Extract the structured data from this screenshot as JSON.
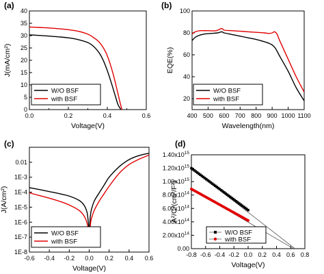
{
  "chart_data": [
    {
      "panel_label": "(a)",
      "type": "line",
      "xlabel": "Voltage(V)",
      "ylabel": "J(mA/cm²)",
      "xlim": [
        0,
        0.6
      ],
      "ylim": [
        0,
        40
      ],
      "xticks": [
        "0.0",
        "0.2",
        "0.4",
        "0.6"
      ],
      "yticks": [
        "0",
        "5",
        "10",
        "15",
        "20",
        "25",
        "30",
        "35",
        "40"
      ],
      "legend_position": "bottom-left",
      "series": [
        {
          "name": "W/O BSF",
          "color": "#000000",
          "x": [
            0,
            0.05,
            0.1,
            0.15,
            0.2,
            0.25,
            0.3,
            0.33,
            0.36,
            0.38,
            0.4,
            0.42,
            0.44,
            0.455,
            0.47
          ],
          "y": [
            30.3,
            30.1,
            29.8,
            29.5,
            29.1,
            28.4,
            27.2,
            25.6,
            22.8,
            19.8,
            15.8,
            11.0,
            5.8,
            2.0,
            0
          ]
        },
        {
          "name": "with BSF",
          "color": "#e00000",
          "x": [
            0,
            0.05,
            0.1,
            0.15,
            0.2,
            0.25,
            0.3,
            0.33,
            0.36,
            0.39,
            0.41,
            0.43,
            0.45,
            0.465,
            0.475
          ],
          "y": [
            33.5,
            33.3,
            33.1,
            32.8,
            32.4,
            31.8,
            30.6,
            29.2,
            27.2,
            23.6,
            19.6,
            14.4,
            8.0,
            3.0,
            0
          ]
        }
      ]
    },
    {
      "panel_label": "(b)",
      "type": "line",
      "xlabel": "Wavelength(nm)",
      "ylabel": "EQE(%)",
      "xlim": [
        400,
        1100
      ],
      "ylim": [
        10,
        100
      ],
      "xticks": [
        "400",
        "500",
        "600",
        "700",
        "800",
        "900",
        "1000",
        "1100"
      ],
      "yticks": [
        "20",
        "40",
        "60",
        "80",
        "100"
      ],
      "legend_position": "bottom-left",
      "series": [
        {
          "name": "W/O BSF",
          "color": "#000000",
          "x": [
            400,
            420,
            450,
            480,
            520,
            560,
            585,
            600,
            650,
            700,
            750,
            800,
            850,
            880,
            900,
            920,
            950,
            1000,
            1050,
            1100
          ],
          "y": [
            73,
            76,
            78,
            79,
            79.5,
            80,
            81,
            80,
            78.5,
            77,
            75.5,
            74,
            72,
            70.5,
            69,
            66,
            58,
            45,
            30,
            18
          ]
        },
        {
          "name": "with BSF",
          "color": "#e00000",
          "x": [
            400,
            420,
            450,
            500,
            550,
            585,
            600,
            650,
            700,
            750,
            800,
            850,
            880,
            900,
            915,
            930,
            950,
            1000,
            1050,
            1100
          ],
          "y": [
            79,
            81,
            82,
            82,
            82,
            84,
            82.5,
            82,
            81.5,
            81,
            80.5,
            80,
            79.5,
            80,
            81,
            79,
            72,
            56,
            40,
            26
          ]
        }
      ]
    },
    {
      "panel_label": "(c)",
      "type": "line",
      "xlabel": "Voltage(V)",
      "ylabel": "J(A/cm²)",
      "xlim": [
        -0.6,
        0.6
      ],
      "ylim": [
        1e-08,
        0.1
      ],
      "yscale": "log",
      "xticks": [
        "-0.6",
        "-0.4",
        "-0.2",
        "0.0",
        "0.2",
        "0.4",
        "0.6"
      ],
      "yticks": [
        "1E-8",
        "1E-7",
        "1E-6",
        "1E-5",
        "1E-4",
        "1E-3",
        "0.01"
      ],
      "legend_position": "bottom-left",
      "series": [
        {
          "name": "W/O BSF",
          "color": "#000000",
          "x": [
            -0.6,
            -0.5,
            -0.4,
            -0.3,
            -0.2,
            -0.1,
            -0.05,
            -0.02,
            0.0,
            0.01,
            0.02,
            0.05,
            0.1,
            0.15,
            0.2,
            0.3,
            0.4,
            0.5,
            0.6
          ],
          "y": [
            0.0002,
            0.00015,
            0.00011,
            8e-05,
            5.5e-05,
            2.8e-05,
            1.3e-05,
            4e-06,
            3.5e-07,
            2e-06,
            6e-06,
            2.5e-05,
            9e-05,
            0.0003,
            0.001,
            0.005,
            0.015,
            0.028,
            0.04
          ]
        },
        {
          "name": "with BSF",
          "color": "#e00000",
          "x": [
            -0.6,
            -0.5,
            -0.4,
            -0.3,
            -0.2,
            -0.1,
            -0.05,
            -0.02,
            0.0,
            0.01,
            0.02,
            0.05,
            0.1,
            0.15,
            0.2,
            0.3,
            0.4,
            0.5,
            0.6
          ],
          "y": [
            9e-05,
            6e-05,
            4e-05,
            2.5e-05,
            1.4e-05,
            6e-06,
            2.5e-06,
            8e-07,
            1.5e-07,
            5e-07,
            1.5e-06,
            6e-06,
            2.5e-05,
            8e-05,
            0.00025,
            0.0018,
            0.007,
            0.016,
            0.03
          ]
        }
      ]
    },
    {
      "panel_label": "(d)",
      "type": "scatter",
      "xlabel": "Voltage(V)",
      "ylabel": "A²/C²(cm²/F²)",
      "xlim": [
        -0.8,
        0.8
      ],
      "ylim": [
        0,
        1400000000000000.0
      ],
      "xticks": [
        "-0.8",
        "-0.6",
        "-0.4",
        "-0.2",
        "0.0",
        "0.2",
        "0.4",
        "0.6",
        "0.8"
      ],
      "yticks": [
        {
          "mantissa": "0.00",
          "exponent": ""
        },
        {
          "mantissa": "2.00x10",
          "exponent": "14"
        },
        {
          "mantissa": "4.00x10",
          "exponent": "14"
        },
        {
          "mantissa": "6.00x10",
          "exponent": "14"
        },
        {
          "mantissa": "8.00x10",
          "exponent": "14"
        },
        {
          "mantissa": "1.00x10",
          "exponent": "15"
        },
        {
          "mantissa": "1.20x10",
          "exponent": "15"
        },
        {
          "mantissa": "1.40x10",
          "exponent": "15"
        }
      ],
      "legend_position": "bottom-center",
      "series": [
        {
          "name": "W/O BSF",
          "color": "#000000",
          "marker": "square",
          "x_start": -0.8,
          "x_end": 0.0,
          "y_start": 1200000000000000.0,
          "y_end": 575000000000000.0,
          "fit_x": [
            -0.8,
            0.66
          ],
          "fit_y": [
            1200000000000000.0,
            0
          ]
        },
        {
          "name": "with BSF",
          "color": "#e00000",
          "marker": "circle",
          "x_start": -0.8,
          "x_end": 0.0,
          "y_start": 890000000000000.0,
          "y_end": 420000000000000.0,
          "fit_x": [
            -0.8,
            0.64
          ],
          "fit_y": [
            890000000000000.0,
            0
          ]
        }
      ]
    }
  ]
}
